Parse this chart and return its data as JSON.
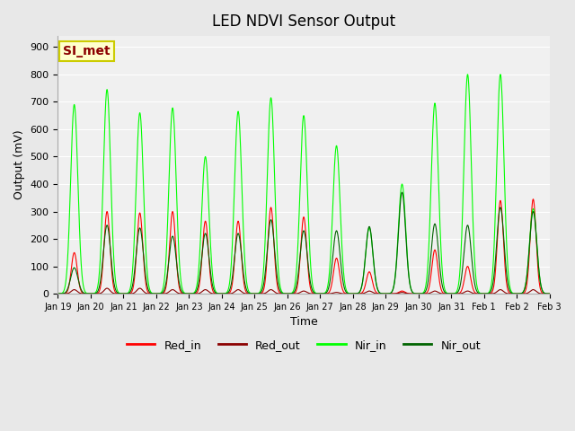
{
  "title": "LED NDVI Sensor Output",
  "xlabel": "Time",
  "ylabel": "Output (mV)",
  "ylim": [
    0,
    940
  ],
  "yticks": [
    0,
    100,
    200,
    300,
    400,
    500,
    600,
    700,
    800,
    900
  ],
  "bg_color": "#e8e8e8",
  "plot_bg": "#f0f0f0",
  "annotation_text": "SI_met",
  "annotation_color": "#8B0000",
  "annotation_bg": "#ffffcc",
  "annotation_border": "#cccc00",
  "line_colors": {
    "Red_in": "#ff0000",
    "Red_out": "#8B0000",
    "Nir_in": "#00ff00",
    "Nir_out": "#006400"
  },
  "x_tick_labels": [
    "Jan 19",
    "Jan 20",
    "Jan 21",
    "Jan 22",
    "Jan 23",
    "Jan 24",
    "Jan 25",
    "Jan 26",
    "Jan 27",
    "Jan 28",
    "Jan 29",
    "Jan 30",
    "Jan 31",
    "Feb 1",
    "Feb 2",
    "Feb 3"
  ],
  "num_days": 15,
  "peaks": {
    "Red_in": [
      150,
      300,
      295,
      300,
      265,
      265,
      315,
      280,
      130,
      80,
      10,
      160,
      100,
      340,
      345
    ],
    "Red_out": [
      15,
      20,
      20,
      15,
      15,
      15,
      15,
      10,
      5,
      10,
      5,
      10,
      10,
      15,
      15
    ],
    "Nir_in": [
      690,
      745,
      660,
      678,
      500,
      665,
      715,
      650,
      540,
      240,
      400,
      695,
      800,
      800,
      310
    ],
    "Nir_out": [
      95,
      250,
      240,
      210,
      220,
      220,
      270,
      230,
      230,
      245,
      370,
      255,
      250,
      315,
      300
    ]
  },
  "peak_positions": [
    0.5,
    1.5,
    2.5,
    3.5,
    4.5,
    5.5,
    6.5,
    7.5,
    8.5,
    9.5,
    10.5,
    11.5,
    12.5,
    13.5,
    14.5
  ]
}
